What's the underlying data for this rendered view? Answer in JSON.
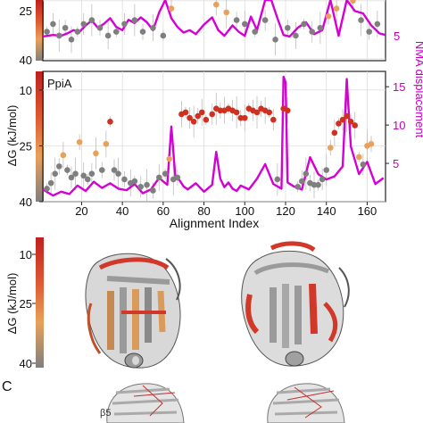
{
  "chart_data": [
    {
      "type": "line+scatter",
      "panel": "top",
      "ylabel_left": "",
      "ylabel_right": "",
      "left_ticks": [
        "25",
        "40"
      ],
      "right_ticks": [
        "5"
      ],
      "colors": {
        "line": "#d400d4",
        "points_low": "#7f7f7f",
        "points_mid": "#e8a15a",
        "points_high": "#d03020"
      },
      "series": [
        {
          "name": "",
          "kind": "nma_line",
          "x": [
            1,
            6,
            10,
            13,
            16,
            19,
            22,
            25,
            28,
            31,
            34,
            37,
            40,
            43,
            46,
            49,
            52,
            55,
            58,
            61,
            64,
            67,
            70,
            73,
            76,
            80,
            84,
            87,
            90,
            94,
            97,
            100,
            103,
            106,
            110,
            113,
            116,
            119,
            122,
            126,
            130,
            134,
            138,
            142,
            146,
            150,
            154,
            158,
            162,
            166,
            169
          ],
          "y": [
            2.8,
            3.0,
            2.9,
            3.2,
            3.6,
            3.4,
            4.2,
            4.8,
            3.9,
            4.4,
            5.1,
            4.0,
            3.6,
            4.9,
            4.5,
            5.2,
            4.6,
            3.6,
            5.8,
            8.6,
            5.1,
            4.0,
            3.3,
            3.6,
            3.1,
            4.3,
            5.2,
            3.6,
            2.9,
            4.2,
            3.4,
            2.9,
            5.3,
            3.6,
            11.2,
            15.6,
            5.1,
            3.0,
            2.8,
            3.9,
            4.6,
            3.1,
            3.6,
            7.6,
            2.9,
            16.5,
            6.0,
            5.7,
            4.2,
            3.2,
            3.0
          ]
        },
        {
          "name": "",
          "kind": "dG_points",
          "x": [
            3,
            6,
            9,
            12,
            15,
            18,
            21,
            25,
            29,
            33,
            37,
            41,
            46,
            50,
            55,
            60,
            64,
            68,
            72,
            77,
            82,
            86,
            91,
            96,
            100,
            105,
            110,
            115,
            121,
            125,
            129,
            133,
            137,
            141,
            145,
            149,
            153,
            157,
            161,
            165
          ],
          "y": [
            33,
            31,
            34,
            32,
            35,
            33,
            31,
            30,
            32,
            34,
            33,
            31,
            30,
            33,
            32,
            34,
            27,
            22,
            21,
            24,
            23,
            26,
            28,
            30,
            31,
            33,
            30,
            35,
            32,
            34,
            31,
            33,
            32,
            29,
            27,
            23,
            25,
            30,
            33,
            31
          ]
        }
      ]
    },
    {
      "type": "line+scatter",
      "panel": "middle",
      "label": "PpiA",
      "xlabel": "Alignment Index",
      "ylabel_left": "ΔG (kJ/mol)",
      "ylabel_right": "NMA displacement",
      "xlim": [
        1,
        169
      ],
      "ylim_left": [
        40,
        5
      ],
      "ylim_right": [
        0,
        17
      ],
      "x_ticks": [
        "20",
        "40",
        "60",
        "80",
        "100",
        "120",
        "140",
        "160"
      ],
      "left_ticks": [
        "10",
        "25",
        "40"
      ],
      "right_ticks": [
        "5",
        "10",
        "15"
      ],
      "colors": {
        "line": "#d400d4",
        "points_low": "#7f7f7f",
        "points_mid": "#e8a15a",
        "points_high": "#d03020"
      },
      "series": [
        {
          "name": "",
          "kind": "nma_line",
          "x": [
            1,
            6,
            10,
            14,
            18,
            22,
            26,
            30,
            34,
            38,
            42,
            46,
            50,
            54,
            58,
            62,
            64,
            66,
            68,
            70,
            72,
            76,
            80,
            84,
            86,
            88,
            90,
            92,
            94,
            96,
            98,
            102,
            106,
            110,
            114,
            118,
            119,
            120,
            121,
            124,
            128,
            132,
            136,
            140,
            144,
            148,
            150,
            152,
            156,
            160,
            164,
            168
          ],
          "y": [
            1.6,
            0.8,
            1.3,
            1.0,
            2.1,
            1.4,
            2.6,
            1.8,
            2.4,
            1.7,
            1.5,
            2.3,
            1.1,
            1.6,
            3.1,
            2.2,
            9.8,
            3.1,
            2.8,
            2.0,
            1.6,
            2.4,
            1.3,
            2.2,
            6.5,
            3.0,
            1.9,
            2.5,
            1.7,
            1.4,
            2.1,
            1.6,
            3.0,
            4.9,
            2.3,
            1.7,
            16.3,
            15.6,
            2.5,
            2.0,
            1.6,
            5.8,
            3.6,
            2.9,
            3.3,
            4.6,
            16.0,
            7.2,
            3.6,
            5.2,
            2.3,
            3.1
          ]
        },
        {
          "name": "",
          "kind": "dG_points",
          "x": [
            3,
            5,
            7,
            9,
            11,
            13,
            15,
            17,
            19,
            21,
            23,
            25,
            27,
            30,
            32,
            34,
            36,
            38,
            41,
            44,
            46,
            49,
            52,
            55,
            58,
            61,
            63,
            65,
            67,
            69,
            71,
            73,
            75,
            77,
            79,
            81,
            84,
            86,
            88,
            90,
            92,
            94,
            96,
            98,
            100,
            102,
            104,
            106,
            108,
            110,
            112,
            114,
            116,
            119,
            121,
            126,
            128,
            130,
            132,
            134,
            136,
            138,
            140,
            142,
            144,
            146,
            148,
            150,
            152,
            154,
            156,
            158,
            160,
            162
          ],
          "y": [
            36.5,
            35.0,
            32.5,
            30.5,
            27.5,
            31.5,
            33.5,
            32.5,
            24.0,
            33.0,
            34.0,
            32.5,
            27.0,
            31.5,
            24.5,
            18.5,
            31.5,
            32.5,
            34.0,
            35.0,
            34.5,
            36.0,
            35.5,
            37.0,
            33.5,
            32.5,
            28.5,
            34.0,
            33.5,
            16.5,
            16.0,
            17.5,
            18.5,
            17.0,
            16.0,
            18.0,
            16.5,
            15.0,
            15.5,
            15.5,
            15.0,
            15.5,
            16.0,
            17.5,
            17.5,
            15.0,
            15.5,
            16.0,
            15.0,
            15.5,
            16.0,
            18.0,
            34.0,
            15.0,
            15.5,
            36.0,
            34.5,
            32.5,
            35.0,
            35.5,
            35.5,
            34.0,
            31.5,
            25.5,
            21.5,
            19.0,
            18.0,
            17.0,
            18.5,
            19.5,
            28.0,
            30.0,
            25.0,
            24.5
          ]
        }
      ]
    }
  ],
  "colorbar_ticks": [
    "10",
    "25",
    "40"
  ],
  "colorbar_label": "ΔG (kJ/mol)",
  "panel_c_label": "C",
  "beta_label": "β5",
  "structure_colors": {
    "grey": "#9a9a9a",
    "light": "#d8d8d8",
    "orange": "#d99a5a",
    "red": "#d2382a",
    "dark": "#4a4a4a"
  }
}
